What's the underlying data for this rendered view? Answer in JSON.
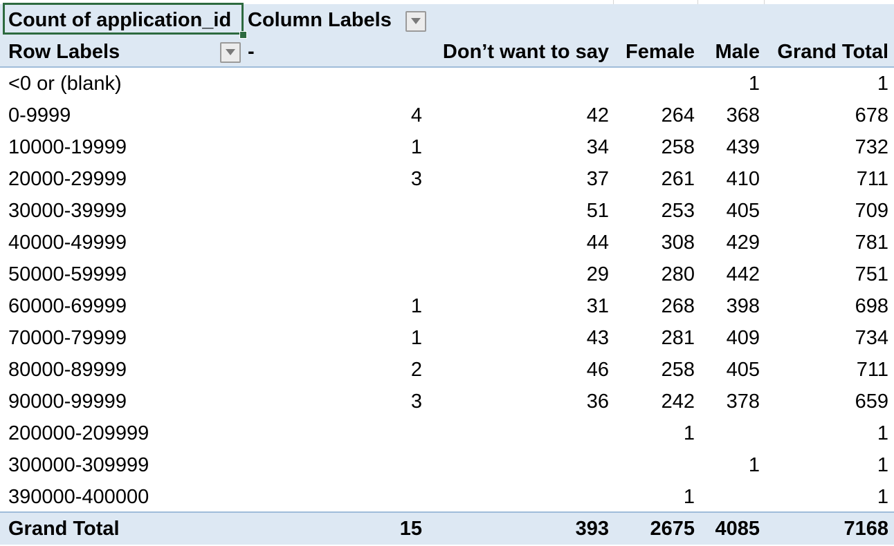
{
  "pivot": {
    "value_field": "Count of application_id",
    "column_labels": "Column Labels",
    "row_labels": "Row Labels",
    "columns": [
      "-",
      "Don’t want to say",
      "Female",
      "Male",
      "Grand Total"
    ],
    "rows": [
      {
        "label": "<0 or (blank)",
        "dash": "",
        "dws": "",
        "female": "",
        "male": "1",
        "total": "1"
      },
      {
        "label": "0-9999",
        "dash": "4",
        "dws": "42",
        "female": "264",
        "male": "368",
        "total": "678"
      },
      {
        "label": "10000-19999",
        "dash": "1",
        "dws": "34",
        "female": "258",
        "male": "439",
        "total": "732"
      },
      {
        "label": "20000-29999",
        "dash": "3",
        "dws": "37",
        "female": "261",
        "male": "410",
        "total": "711"
      },
      {
        "label": "30000-39999",
        "dash": "",
        "dws": "51",
        "female": "253",
        "male": "405",
        "total": "709"
      },
      {
        "label": "40000-49999",
        "dash": "",
        "dws": "44",
        "female": "308",
        "male": "429",
        "total": "781"
      },
      {
        "label": "50000-59999",
        "dash": "",
        "dws": "29",
        "female": "280",
        "male": "442",
        "total": "751"
      },
      {
        "label": "60000-69999",
        "dash": "1",
        "dws": "31",
        "female": "268",
        "male": "398",
        "total": "698"
      },
      {
        "label": "70000-79999",
        "dash": "1",
        "dws": "43",
        "female": "281",
        "male": "409",
        "total": "734"
      },
      {
        "label": "80000-89999",
        "dash": "2",
        "dws": "46",
        "female": "258",
        "male": "405",
        "total": "711"
      },
      {
        "label": "90000-99999",
        "dash": "3",
        "dws": "36",
        "female": "242",
        "male": "378",
        "total": "659"
      },
      {
        "label": "200000-209999",
        "dash": "",
        "dws": "",
        "female": "1",
        "male": "",
        "total": "1"
      },
      {
        "label": "300000-309999",
        "dash": "",
        "dws": "",
        "female": "",
        "male": "1",
        "total": "1"
      },
      {
        "label": "390000-400000",
        "dash": "",
        "dws": "",
        "female": "1",
        "male": "",
        "total": "1"
      }
    ],
    "grand_total": {
      "label": "Grand Total",
      "dash": "15",
      "dws": "393",
      "female": "2675",
      "male": "4085",
      "total": "7168"
    }
  },
  "icons": {
    "filter_dropdown": "chevron-down-icon"
  },
  "colors": {
    "header_fill": "#dde8f3",
    "selection_border": "#2d6a3f",
    "header_rule": "#9fbcd9"
  }
}
